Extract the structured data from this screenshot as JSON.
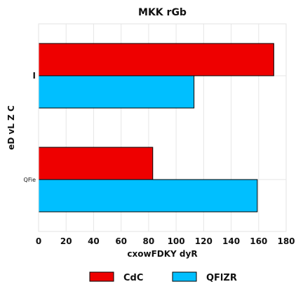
{
  "chart_data": {
    "type": "bar",
    "orientation": "horizontal",
    "title": "MKK rGb",
    "xlabel": "cxowFDKY dyR",
    "ylabel": "eD vL Z C",
    "categories": [
      "I",
      "QFie"
    ],
    "series": [
      {
        "name": "CdC",
        "values": [
          171,
          83
        ],
        "color": "#ee0000"
      },
      {
        "name": "QFlZR",
        "values": [
          113,
          159
        ],
        "color": "#00bfff"
      }
    ],
    "xlim": [
      0,
      180
    ],
    "xticks": [
      0,
      20,
      40,
      60,
      80,
      100,
      120,
      140,
      160,
      180
    ],
    "grid": true,
    "legend_position": "bottom"
  }
}
